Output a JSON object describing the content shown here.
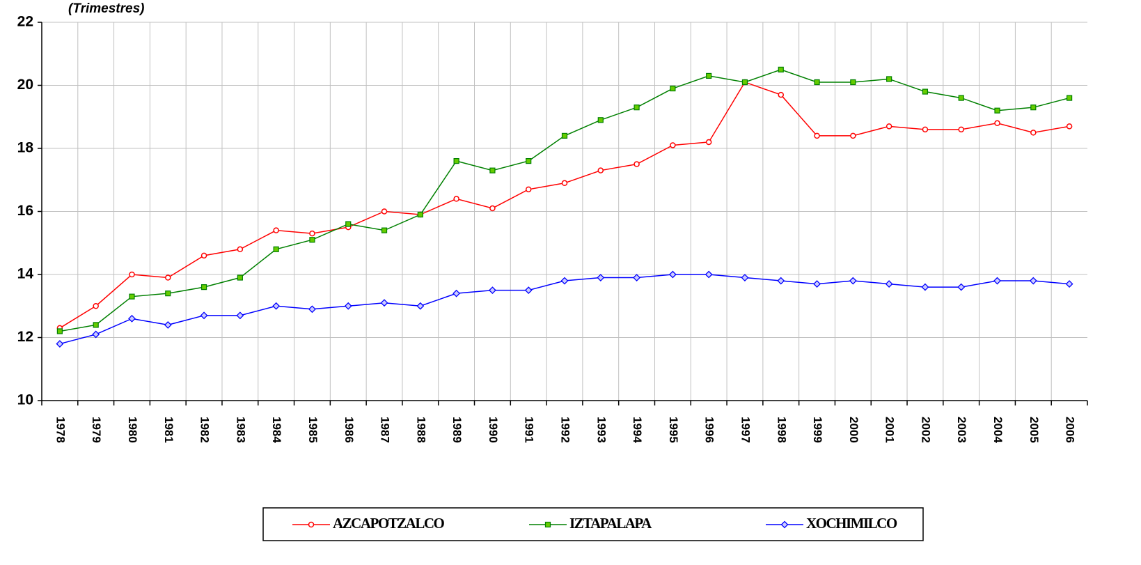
{
  "chart_data": {
    "type": "line",
    "subtitle": "(Trimestres)",
    "categories": [
      "1978",
      "1979",
      "1980",
      "1981",
      "1982",
      "1983",
      "1984",
      "1985",
      "1986",
      "1987",
      "1988",
      "1989",
      "1990",
      "1991",
      "1992",
      "1993",
      "1994",
      "1995",
      "1996",
      "1997",
      "1998",
      "1999",
      "2000",
      "2001",
      "2002",
      "2003",
      "2004",
      "2005",
      "2006"
    ],
    "series": [
      {
        "name": "AZCAPOTZALCO",
        "color": "#ff0000",
        "marker": "circle",
        "values": [
          12.3,
          13.0,
          14.0,
          13.9,
          14.6,
          14.8,
          15.4,
          15.3,
          15.5,
          16.0,
          15.9,
          16.4,
          16.1,
          16.7,
          16.9,
          17.3,
          17.5,
          18.1,
          18.2,
          20.1,
          19.7,
          18.4,
          18.4,
          18.7,
          18.6,
          18.6,
          18.8,
          18.5,
          18.7
        ]
      },
      {
        "name": "IZTAPALAPA",
        "color": "#008000",
        "marker": "square",
        "values": [
          12.2,
          12.4,
          13.3,
          13.4,
          13.6,
          13.9,
          14.8,
          15.1,
          15.6,
          15.4,
          15.9,
          17.6,
          17.3,
          17.6,
          18.4,
          18.9,
          19.3,
          19.9,
          20.3,
          20.1,
          20.5,
          20.1,
          20.1,
          20.2,
          19.8,
          19.6,
          19.2,
          19.3,
          19.6
        ]
      },
      {
        "name": "XOCHIMILCO",
        "color": "#0000ff",
        "marker": "diamond",
        "values": [
          11.8,
          12.1,
          12.6,
          12.4,
          12.7,
          12.7,
          13.0,
          12.9,
          13.0,
          13.1,
          13.0,
          13.4,
          13.5,
          13.5,
          13.8,
          13.9,
          13.9,
          14.0,
          14.0,
          13.9,
          13.8,
          13.7,
          13.8,
          13.7,
          13.6,
          13.6,
          13.8,
          13.8,
          13.7
        ]
      }
    ],
    "ylim": [
      10,
      22
    ],
    "yticks": [
      10,
      12,
      14,
      16,
      18,
      20,
      22
    ],
    "grid": true,
    "legend": "bottom"
  }
}
